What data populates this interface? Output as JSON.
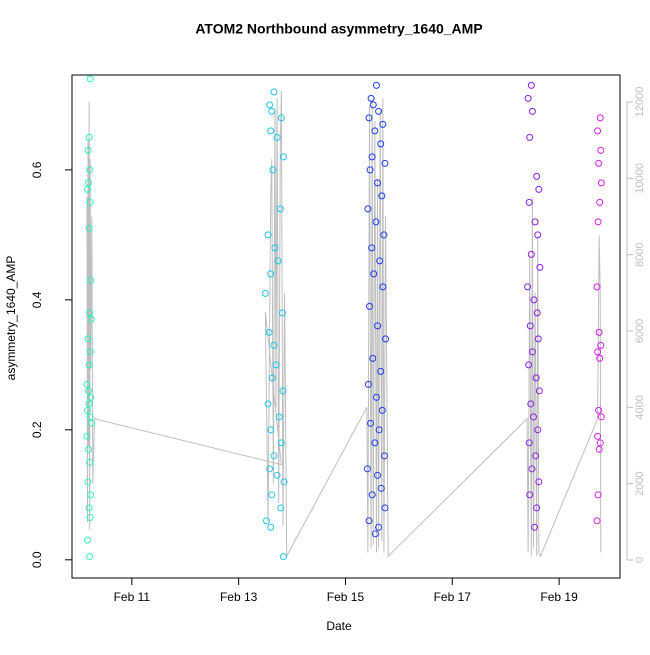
{
  "chart_data": {
    "type": "scatter",
    "title": "ATOM2 Northbound asymmetry_1640_AMP",
    "x_label": "Date",
    "y_label": "asymmetry_1640_AMP",
    "xlim": [
      9.88,
      20.14
    ],
    "xticks": [
      {
        "value": 11,
        "label": "Feb 11"
      },
      {
        "value": 13,
        "label": "Feb 13"
      },
      {
        "value": 15,
        "label": "Feb 15"
      },
      {
        "value": 17,
        "label": "Feb 17"
      },
      {
        "value": 19,
        "label": "Feb 19"
      }
    ],
    "ylim": [
      -0.028,
      0.746
    ],
    "yticks": [
      0.0,
      0.2,
      0.4,
      0.6
    ],
    "y2lim": [
      -472,
      12707
    ],
    "y2ticks": [
      0,
      2000,
      4000,
      6000,
      8000,
      10000,
      12000
    ],
    "y2_color": "#bebebe",
    "series": [
      {
        "color": "#2ef0c0",
        "x": [
          10.22,
          10.2,
          10.18,
          10.21,
          10.19,
          10.17,
          10.22,
          10.2,
          10.23,
          10.21,
          10.24,
          10.18,
          10.22,
          10.2,
          10.16,
          10.19,
          10.23,
          10.2,
          10.17,
          10.22,
          10.25,
          10.16,
          10.19,
          10.21,
          10.18,
          10.23,
          10.2,
          10.22,
          10.17,
          10.21
        ],
        "values": [
          0.74,
          0.65,
          0.63,
          0.6,
          0.58,
          0.57,
          0.55,
          0.51,
          0.43,
          0.38,
          0.37,
          0.34,
          0.32,
          0.3,
          0.27,
          0.26,
          0.25,
          0.24,
          0.23,
          0.22,
          0.21,
          0.19,
          0.17,
          0.15,
          0.12,
          0.1,
          0.08,
          0.065,
          0.03,
          0.005
        ]
      },
      {
        "color": "#20c4f0",
        "x": [
          13.66,
          13.58,
          13.62,
          13.8,
          13.6,
          13.72,
          13.84,
          13.64,
          13.78,
          13.55,
          13.68,
          13.74,
          13.6,
          13.5,
          13.82,
          13.57,
          13.66,
          13.7,
          13.63,
          13.83,
          13.55,
          13.76,
          13.6,
          13.8,
          13.66,
          13.58,
          13.72,
          13.85,
          13.62,
          13.79,
          13.52,
          13.6,
          13.84
        ],
        "values": [
          0.72,
          0.7,
          0.69,
          0.68,
          0.66,
          0.65,
          0.62,
          0.6,
          0.54,
          0.5,
          0.48,
          0.46,
          0.44,
          0.41,
          0.38,
          0.35,
          0.33,
          0.3,
          0.28,
          0.26,
          0.24,
          0.22,
          0.2,
          0.18,
          0.16,
          0.14,
          0.13,
          0.12,
          0.1,
          0.08,
          0.06,
          0.05,
          0.005
        ]
      },
      {
        "color": "#1e3cf0",
        "x": [
          15.58,
          15.48,
          15.52,
          15.62,
          15.44,
          15.7,
          15.55,
          15.66,
          15.5,
          15.74,
          15.46,
          15.6,
          15.68,
          15.42,
          15.57,
          15.72,
          15.49,
          15.64,
          15.53,
          15.7,
          15.45,
          15.6,
          15.75,
          15.51,
          15.66,
          15.43,
          15.58,
          15.69,
          15.47,
          15.63,
          15.55,
          15.73,
          15.41,
          15.6,
          15.67,
          15.5,
          15.74,
          15.44,
          15.62,
          15.56
        ],
        "values": [
          0.73,
          0.71,
          0.7,
          0.69,
          0.68,
          0.67,
          0.66,
          0.64,
          0.62,
          0.61,
          0.6,
          0.58,
          0.56,
          0.54,
          0.52,
          0.5,
          0.48,
          0.46,
          0.44,
          0.42,
          0.39,
          0.36,
          0.34,
          0.31,
          0.29,
          0.27,
          0.25,
          0.23,
          0.21,
          0.2,
          0.18,
          0.16,
          0.14,
          0.13,
          0.11,
          0.1,
          0.08,
          0.06,
          0.05,
          0.04
        ]
      },
      {
        "color": "#8c1ee6",
        "x": [
          18.48,
          18.42,
          18.5,
          18.45,
          18.58,
          18.62,
          18.44,
          18.55,
          18.6,
          18.48,
          18.64,
          18.41,
          18.53,
          18.59,
          18.46,
          18.61,
          18.5,
          18.43,
          18.57,
          18.63,
          18.47,
          18.52,
          18.6,
          18.44,
          18.56,
          18.49,
          18.62,
          18.45,
          18.58,
          18.54
        ],
        "values": [
          0.73,
          0.71,
          0.69,
          0.65,
          0.59,
          0.57,
          0.55,
          0.52,
          0.5,
          0.47,
          0.45,
          0.42,
          0.4,
          0.38,
          0.36,
          0.34,
          0.32,
          0.3,
          0.28,
          0.26,
          0.24,
          0.22,
          0.2,
          0.18,
          0.16,
          0.14,
          0.12,
          0.1,
          0.08,
          0.05
        ]
      },
      {
        "color": "#d21ee6",
        "x": [
          19.77,
          19.72,
          19.78,
          19.74,
          19.79,
          19.76,
          19.73,
          19.71,
          19.75,
          19.78,
          19.72,
          19.76,
          19.74,
          19.79,
          19.72,
          19.77,
          19.75,
          19.73,
          19.71
        ],
        "values": [
          0.68,
          0.66,
          0.63,
          0.61,
          0.58,
          0.55,
          0.52,
          0.42,
          0.35,
          0.33,
          0.32,
          0.31,
          0.23,
          0.22,
          0.19,
          0.18,
          0.17,
          0.1,
          0.06
        ]
      },
      {
        "type": "line",
        "axis": "y2",
        "color": "#bebebe",
        "x": [
          10.16,
          10.17,
          10.18,
          10.19,
          10.2,
          10.21,
          10.22,
          10.23,
          10.25,
          10.27,
          10.3,
          13.8,
          13.5,
          13.55,
          13.6,
          13.62,
          13.65,
          13.68,
          13.7,
          13.72,
          13.75,
          13.78,
          13.8,
          13.83,
          13.86,
          13.9,
          15.4,
          15.42,
          15.45,
          15.48,
          15.5,
          15.52,
          15.55,
          15.58,
          15.6,
          15.62,
          15.65,
          15.68,
          15.7,
          15.72,
          15.75,
          15.8,
          18.4,
          18.42,
          18.45,
          18.48,
          18.5,
          18.52,
          18.55,
          18.58,
          18.6,
          18.62,
          18.65,
          19.72,
          19.75,
          19.77,
          19.78
        ],
        "values": [
          9500,
          1000,
          11000,
          3000,
          12000,
          800,
          10500,
          5000,
          9000,
          2000,
          3700,
          2500,
          6500,
          1000,
          9500,
          10500,
          2000,
          11800,
          4000,
          12100,
          1500,
          10800,
          12300,
          900,
          7000,
          100,
          4000,
          200,
          11900,
          300,
          12000,
          400,
          11500,
          200,
          10000,
          300,
          11800,
          500,
          12100,
          200,
          9000,
          100,
          3700,
          200,
          8000,
          100,
          9500,
          300,
          7000,
          100,
          8500,
          200,
          100,
          3700,
          8500,
          7000,
          200
        ]
      }
    ]
  }
}
